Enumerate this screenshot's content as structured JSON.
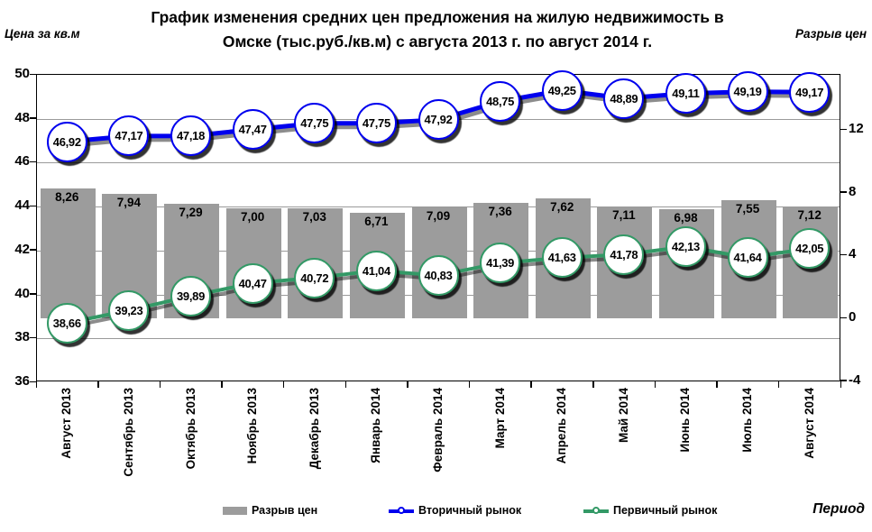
{
  "header": {
    "title_line1": "График изменения средних цен предложения на жилую недвижимость в",
    "title_line2": "Омске (тыс.руб./кв.м) с августа 2013 г. по август 2014  г.",
    "left_axis_caption": "Цена за кв.м",
    "right_axis_caption": "Разрыв цен",
    "x_axis_caption": "Период"
  },
  "legend": {
    "gap": "Разрыв цен",
    "secondary": "Вторичный рынок",
    "primary": "Первичный рынок"
  },
  "colors": {
    "bar": "#9c9c9c",
    "secondary_line": "#0000ee",
    "primary_line": "#339966",
    "gridline": "#9a9a9a",
    "marker_fill": "#ffffff",
    "text": "#000000"
  },
  "chart_data": {
    "type": "combo (bar + 2 lines)",
    "title": "График изменения средних цен предложения на жилую недвижимость в Омске (тыс.руб./кв.м) с августа 2013 г. по август 2014 г.",
    "categories": [
      "Август 2013",
      "Сентябрь 2013",
      "Октябрь 2013",
      "Ноябрь 2013",
      "Декабрь 2013",
      "Январь 2014",
      "Февраль 2014",
      "Март 2014",
      "Апрель 2014",
      "Май 2014",
      "Июнь 2014",
      "Июль 2014",
      "Август 2014"
    ],
    "series": [
      {
        "name": "Разрыв цен",
        "type": "bar",
        "axis": "right",
        "values": [
          8.26,
          7.94,
          7.29,
          7.0,
          7.03,
          6.71,
          7.09,
          7.36,
          7.62,
          7.11,
          6.98,
          7.55,
          7.12
        ]
      },
      {
        "name": "Вторичный рынок",
        "type": "line",
        "axis": "left",
        "values": [
          46.92,
          47.17,
          47.18,
          47.47,
          47.75,
          47.75,
          47.92,
          48.75,
          49.25,
          48.89,
          49.11,
          49.19,
          49.17
        ]
      },
      {
        "name": "Первичный рынок",
        "type": "line",
        "axis": "left",
        "values": [
          38.66,
          39.23,
          39.89,
          40.47,
          40.72,
          41.04,
          40.83,
          41.39,
          41.63,
          41.78,
          42.13,
          41.64,
          42.05
        ]
      }
    ],
    "left_axis": {
      "caption": "Цена за кв.м",
      "min": 36,
      "max": 50,
      "ticks": [
        36,
        38,
        40,
        42,
        44,
        46,
        48,
        50
      ]
    },
    "right_axis": {
      "caption": "Разрыв цен",
      "ticks": [
        -4,
        0,
        4,
        8,
        12
      ]
    },
    "x_axis": {
      "caption": "Период"
    },
    "grid": "horizontal gridlines every 2 units of left axis",
    "legend_position": "bottom",
    "decimal_separator": ","
  }
}
